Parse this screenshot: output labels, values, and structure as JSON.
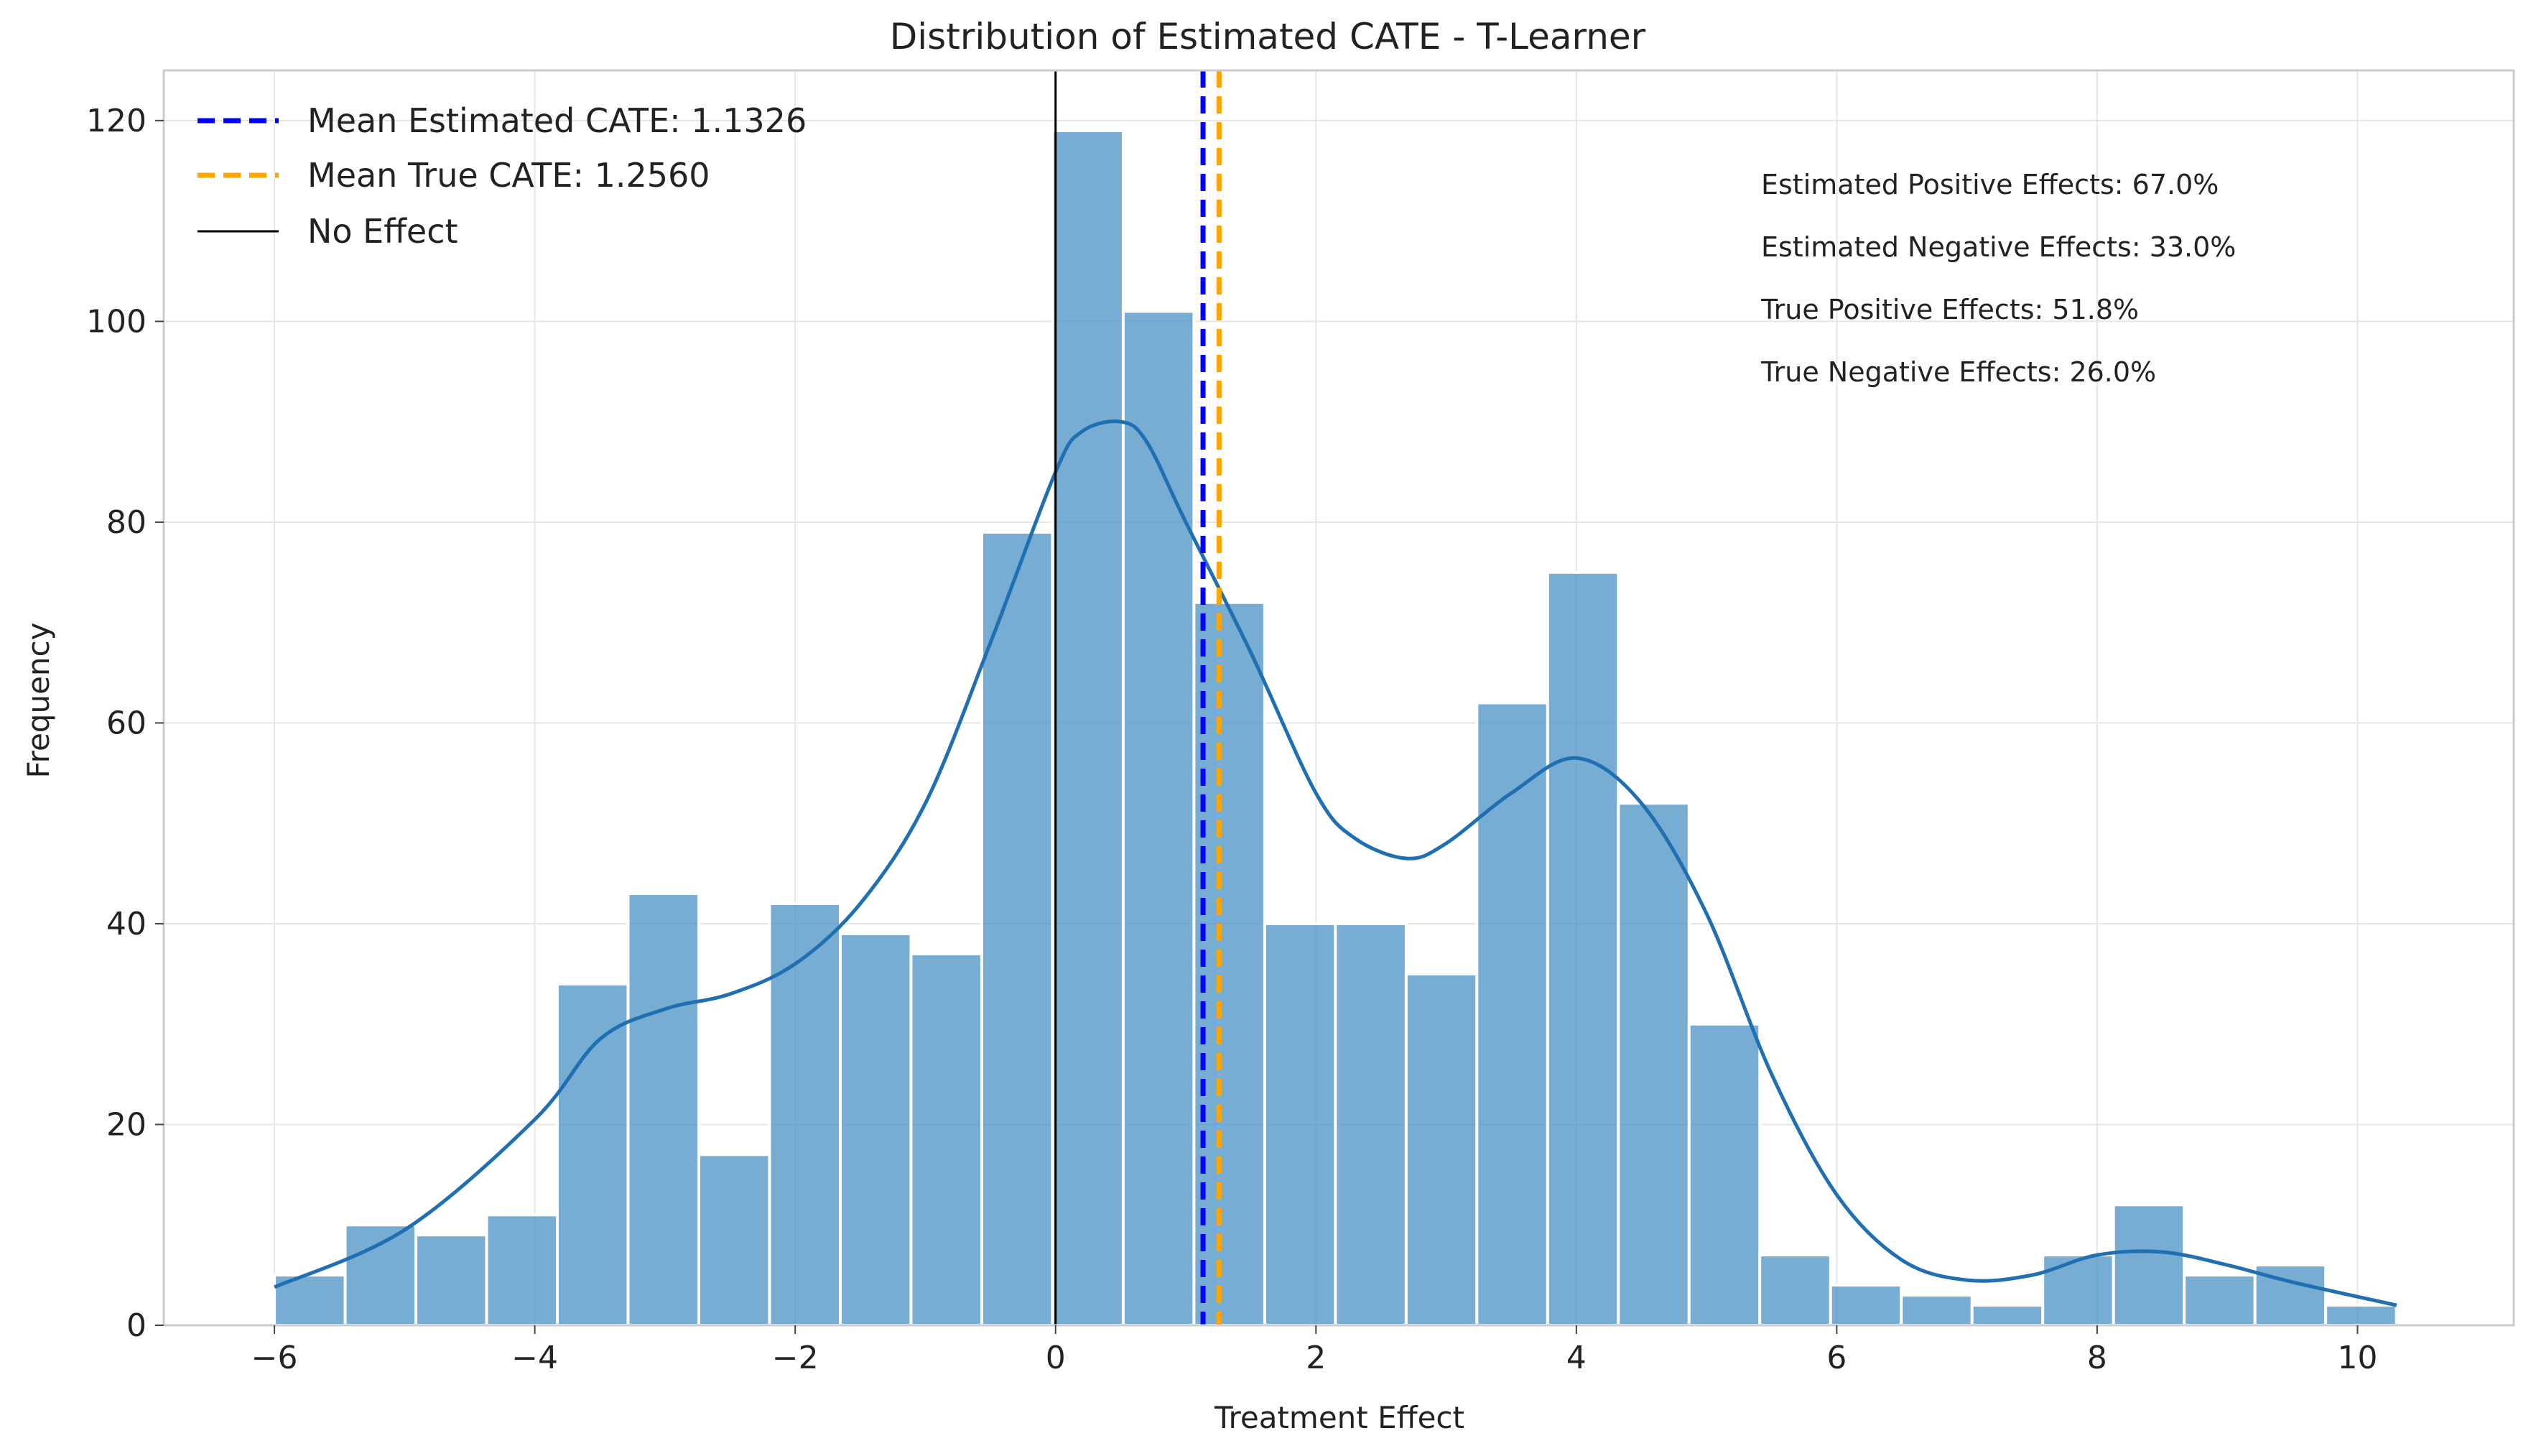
{
  "chart_data": {
    "type": "bar",
    "title": "Distribution of Estimated CATE - T-Learner",
    "xlabel": "Treatment Effect",
    "ylabel": "Frequency",
    "xlim": [
      -6.85,
      11.2
    ],
    "ylim": [
      0,
      125
    ],
    "grid": true,
    "legend_position": "top-left",
    "xticks": [
      {
        "value": -6,
        "label": "−6"
      },
      {
        "value": -4,
        "label": "−4"
      },
      {
        "value": -2,
        "label": "−2"
      },
      {
        "value": 0,
        "label": "0"
      },
      {
        "value": 2,
        "label": "2"
      },
      {
        "value": 4,
        "label": "4"
      },
      {
        "value": 6,
        "label": "6"
      },
      {
        "value": 8,
        "label": "8"
      },
      {
        "value": 10,
        "label": "10"
      }
    ],
    "yticks": [
      {
        "value": 0,
        "label": "0"
      },
      {
        "value": 20,
        "label": "20"
      },
      {
        "value": 40,
        "label": "40"
      },
      {
        "value": 60,
        "label": "60"
      },
      {
        "value": 80,
        "label": "80"
      },
      {
        "value": 100,
        "label": "100"
      },
      {
        "value": 120,
        "label": "120"
      }
    ],
    "bin_start": -6.0,
    "bin_width": 0.5433,
    "counts": [
      5,
      10,
      9,
      11,
      34,
      43,
      17,
      42,
      39,
      37,
      79,
      119,
      101,
      72,
      40,
      40,
      35,
      62,
      75,
      52,
      30,
      7,
      4,
      3,
      2,
      7,
      12,
      5,
      6,
      2
    ],
    "bar_color": "#4a90c4",
    "kde": {
      "x": [
        -6.0,
        -5.0,
        -4.0,
        -3.5,
        -3.0,
        -2.5,
        -2.0,
        -1.5,
        -1.0,
        -0.5,
        0.0,
        0.2,
        0.5,
        0.7,
        1.0,
        1.5,
        2.0,
        2.3,
        2.7,
        3.0,
        3.5,
        4.0,
        4.5,
        5.0,
        5.5,
        6.0,
        6.5,
        7.0,
        7.5,
        8.0,
        8.5,
        9.0,
        9.5,
        10.3
      ],
      "y": [
        3.8,
        9.5,
        20.5,
        28.5,
        31.5,
        33.0,
        36.0,
        42.0,
        52.0,
        68.0,
        85.0,
        89.0,
        90.0,
        88.0,
        80.0,
        67.0,
        53.0,
        48.5,
        46.5,
        48.0,
        53.0,
        56.5,
        52.0,
        41.0,
        25.0,
        13.0,
        6.5,
        4.5,
        5.0,
        7.0,
        7.3,
        6.0,
        4.3,
        2.0
      ],
      "color": "#1f6fb2"
    },
    "vlines": [
      {
        "name": "Mean Estimated CATE: 1.1326",
        "x": 1.1326,
        "color": "#0000ff",
        "style": "dashed"
      },
      {
        "name": "Mean True CATE: 1.2560",
        "x": 1.256,
        "color": "#ffa500",
        "style": "dashed"
      },
      {
        "name": "No Effect",
        "x": 0,
        "color": "#000000",
        "style": "solid"
      }
    ],
    "annotations": [
      "Estimated Positive Effects: 67.0%",
      "Estimated Negative Effects: 33.0%",
      "True Positive Effects: 51.8%",
      "True Negative Effects: 26.0%"
    ]
  }
}
